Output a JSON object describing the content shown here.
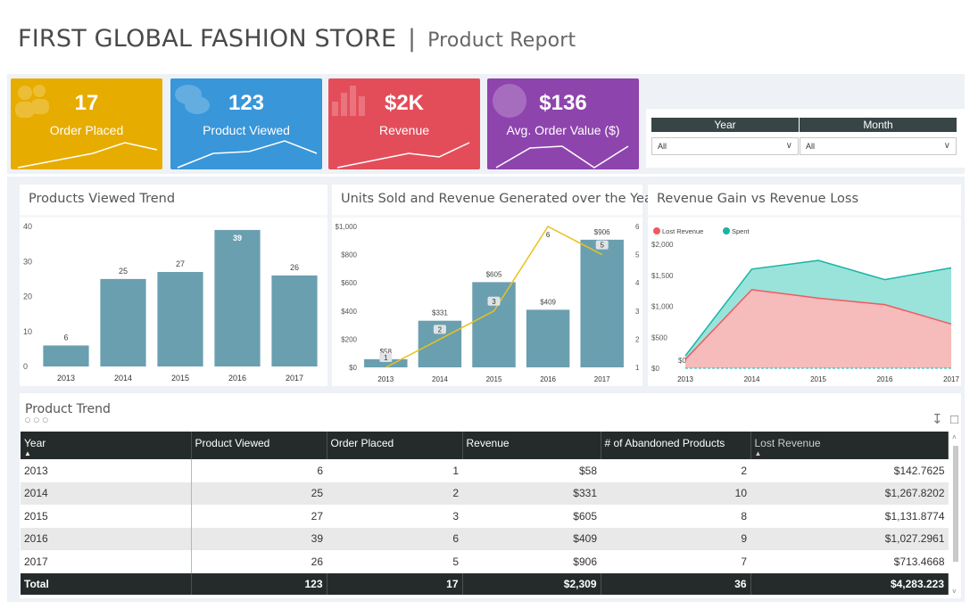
{
  "header": {
    "title": "FIRST GLOBAL FASHION STORE",
    "separator": "|",
    "subtitle": "Product Report"
  },
  "kpis": [
    {
      "value": "17",
      "label": "Order Placed",
      "color": "#e7ac00",
      "icon": "users-icon"
    },
    {
      "value": "123",
      "label": "Product Viewed",
      "color": "#3996d9",
      "icon": "chat-icon"
    },
    {
      "value": "$2K",
      "label": "Revenue",
      "color": "#e34d5a",
      "icon": "bar-chart-icon"
    },
    {
      "value": "$136",
      "label": "Avg. Order Value ($)",
      "color": "#8e44ad",
      "icon": "globe-icon"
    }
  ],
  "slicers": {
    "year": {
      "label": "Year",
      "value": "All"
    },
    "month": {
      "label": "Month",
      "value": "All"
    }
  },
  "charts_text": {
    "viewed_title": "Products Viewed Trend",
    "units_title": "Units Sold and Revenue Generated over the Years",
    "gain_title": "Revenue Gain vs Revenue Loss"
  },
  "chart_data": [
    {
      "type": "bar",
      "title": "Products Viewed Trend",
      "categories": [
        "2013",
        "2014",
        "2015",
        "2016",
        "2017"
      ],
      "values": [
        6,
        25,
        27,
        39,
        26
      ],
      "ylim": [
        0,
        40
      ],
      "yticks": [
        "0",
        "10",
        "20",
        "30",
        "40"
      ],
      "color": "#6a9fb0",
      "highlight_index": 3
    },
    {
      "type": "bar",
      "title": "Units Sold and Revenue Generated over the Years",
      "categories": [
        "2013",
        "2014",
        "2015",
        "2016",
        "2017"
      ],
      "bar_values": [
        58,
        331,
        605,
        409,
        906
      ],
      "bar_labels": [
        "$58",
        "$331",
        "$605",
        "$409",
        "$906"
      ],
      "line_values": [
        1,
        2,
        3,
        6,
        5
      ],
      "ylim_left": [
        0,
        1000
      ],
      "ylim_right": [
        1,
        6
      ],
      "yticks_left": [
        "$0",
        "$200",
        "$400",
        "$600",
        "$800",
        "$1,000"
      ],
      "yticks_right": [
        "1",
        "2",
        "3",
        "4",
        "5",
        "6"
      ],
      "bar_color": "#6a9fb0",
      "line_color": "#e8c21a"
    },
    {
      "type": "area",
      "title": "Revenue Gain vs Revenue Loss",
      "categories": [
        "2013",
        "2014",
        "2015",
        "2016",
        "2017"
      ],
      "legend_position": "top-left",
      "ylim": [
        0,
        2000
      ],
      "yticks": [
        "$0",
        "$500",
        "$1,000",
        "$1,500",
        "$2,000"
      ],
      "start_label": "$0",
      "series": [
        {
          "name": "Lost Revenue",
          "values": [
            142.76,
            1267.82,
            1131.88,
            1027.3,
            713.47
          ],
          "color": "#f05a5f"
        },
        {
          "name": "Spent",
          "values": [
            200,
            1600,
            1740,
            1430,
            1620
          ],
          "color": "#1ab4a4"
        }
      ]
    }
  ],
  "table": {
    "title": "Product Trend",
    "headers": [
      "Year",
      "Product Viewed",
      "Order Placed",
      "Revenue",
      "# of Abandoned Products",
      "Lost Revenue"
    ],
    "rows": [
      [
        "2013",
        "6",
        "1",
        "$58",
        "2",
        "$142.7625"
      ],
      [
        "2014",
        "25",
        "2",
        "$331",
        "10",
        "$1,267.8202"
      ],
      [
        "2015",
        "27",
        "3",
        "$605",
        "8",
        "$1,131.8774"
      ],
      [
        "2016",
        "39",
        "6",
        "$409",
        "9",
        "$1,027.2961"
      ],
      [
        "2017",
        "26",
        "5",
        "$906",
        "7",
        "$713.4668"
      ]
    ],
    "total": [
      "Total",
      "123",
      "17",
      "$2,309",
      "36",
      "$4,283.223"
    ]
  }
}
